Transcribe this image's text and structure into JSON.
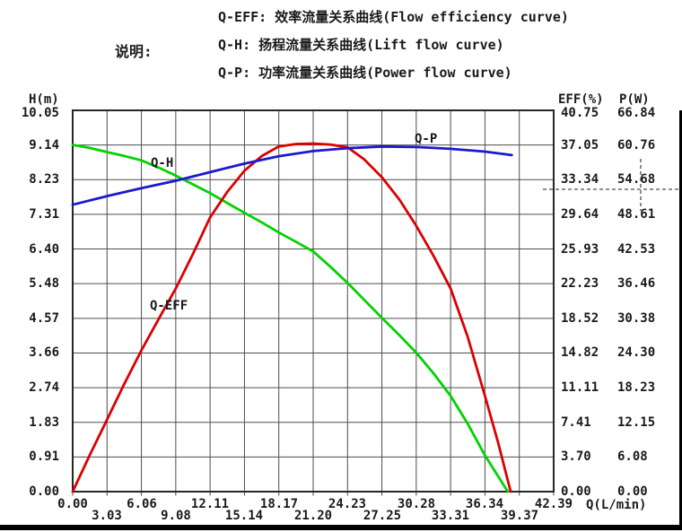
{
  "legend": {
    "heading": "说明:",
    "items": [
      "Q-EFF: 效率流量关系曲线(Flow efficiency curve)",
      "Q-H: 扬程流量关系曲线(Lift flow curve)",
      "Q-P: 功率流量关系曲线(Power flow curve)"
    ]
  },
  "chart_data": {
    "type": "line",
    "grid": true,
    "x_axis": {
      "label": "Q(L/min)",
      "min": 0,
      "max": 42.39,
      "ticks": [
        "0.00",
        "3.03",
        "6.06",
        "9.08",
        "12.11",
        "15.14",
        "18.17",
        "21.20",
        "24.23",
        "27.25",
        "30.28",
        "33.31",
        "36.34",
        "39.37",
        "42.39"
      ]
    },
    "y_axes": {
      "h": {
        "label": "H(m)",
        "min": 0,
        "max": 10.05,
        "ticks": [
          "10.05",
          "9.14",
          "8.23",
          "7.31",
          "6.40",
          "5.48",
          "4.57",
          "3.66",
          "2.74",
          "1.83",
          "0.91",
          "0.00"
        ]
      },
      "eff": {
        "label": "EFF(%)",
        "min": 0,
        "max": 40.75,
        "ticks": [
          "40.75",
          "37.05",
          "33.34",
          "29.64",
          "25.93",
          "22.23",
          "18.52",
          "14.82",
          "11.11",
          "7.41",
          "3.70",
          "0.00"
        ]
      },
      "p": {
        "label": "P(W)",
        "min": 0,
        "max": 66.84,
        "ticks": [
          "66.84",
          "60.76",
          "54.68",
          "48.61",
          "42.53",
          "36.46",
          "30.38",
          "24.30",
          "18.23",
          "12.15",
          "6.08",
          "0.00"
        ]
      }
    },
    "series": [
      {
        "name": "Q-H",
        "axis": "h",
        "color": "#00d300",
        "points": [
          [
            0,
            9.14
          ],
          [
            1.5,
            9.06
          ],
          [
            3.03,
            8.95
          ],
          [
            4.5,
            8.85
          ],
          [
            6.06,
            8.73
          ],
          [
            7.6,
            8.54
          ],
          [
            9.08,
            8.33
          ],
          [
            10.6,
            8.1
          ],
          [
            12.11,
            7.87
          ],
          [
            13.6,
            7.61
          ],
          [
            15.14,
            7.35
          ],
          [
            16.7,
            7.09
          ],
          [
            18.17,
            6.83
          ],
          [
            19.7,
            6.58
          ],
          [
            21.2,
            6.33
          ],
          [
            22.7,
            5.93
          ],
          [
            24.23,
            5.5
          ],
          [
            25.7,
            5.05
          ],
          [
            27.25,
            4.58
          ],
          [
            28.8,
            4.12
          ],
          [
            30.28,
            3.66
          ],
          [
            31.8,
            3.12
          ],
          [
            33.31,
            2.52
          ],
          [
            34.8,
            1.8
          ],
          [
            36.34,
            0.95
          ],
          [
            37.4,
            0.45
          ],
          [
            38.35,
            0
          ]
        ]
      },
      {
        "name": "Q-EFF",
        "axis": "eff",
        "color": "#dc0000",
        "points": [
          [
            0,
            0
          ],
          [
            1.5,
            3.9
          ],
          [
            3.03,
            7.7
          ],
          [
            4.5,
            11.4
          ],
          [
            6.06,
            15.1
          ],
          [
            7.6,
            18.5
          ],
          [
            9.08,
            21.7
          ],
          [
            10.6,
            25.4
          ],
          [
            12.11,
            29.3
          ],
          [
            13.6,
            32.0
          ],
          [
            15.14,
            34.3
          ],
          [
            16.7,
            35.9
          ],
          [
            18.17,
            36.9
          ],
          [
            19.7,
            37.15
          ],
          [
            21.2,
            37.2
          ],
          [
            22.7,
            37.1
          ],
          [
            24.23,
            36.8
          ],
          [
            25.7,
            35.5
          ],
          [
            27.25,
            33.6
          ],
          [
            28.8,
            31.2
          ],
          [
            30.28,
            28.4
          ],
          [
            31.8,
            25.2
          ],
          [
            33.31,
            21.7
          ],
          [
            34.8,
            16.6
          ],
          [
            36.34,
            10.2
          ],
          [
            37.5,
            5.2
          ],
          [
            38.6,
            0
          ]
        ]
      },
      {
        "name": "Q-P",
        "axis": "p",
        "color": "#1a1acd",
        "points": [
          [
            0,
            50.3
          ],
          [
            3.03,
            51.8
          ],
          [
            6.06,
            53.2
          ],
          [
            9.08,
            54.5
          ],
          [
            12.11,
            56.0
          ],
          [
            15.14,
            57.5
          ],
          [
            18.17,
            58.8
          ],
          [
            21.2,
            59.7
          ],
          [
            24.23,
            60.2
          ],
          [
            27.25,
            60.5
          ],
          [
            30.28,
            60.4
          ],
          [
            33.31,
            60.1
          ],
          [
            36.34,
            59.6
          ],
          [
            38.7,
            59.0
          ]
        ]
      }
    ],
    "crosshair": {
      "p_value": 53.0
    }
  }
}
